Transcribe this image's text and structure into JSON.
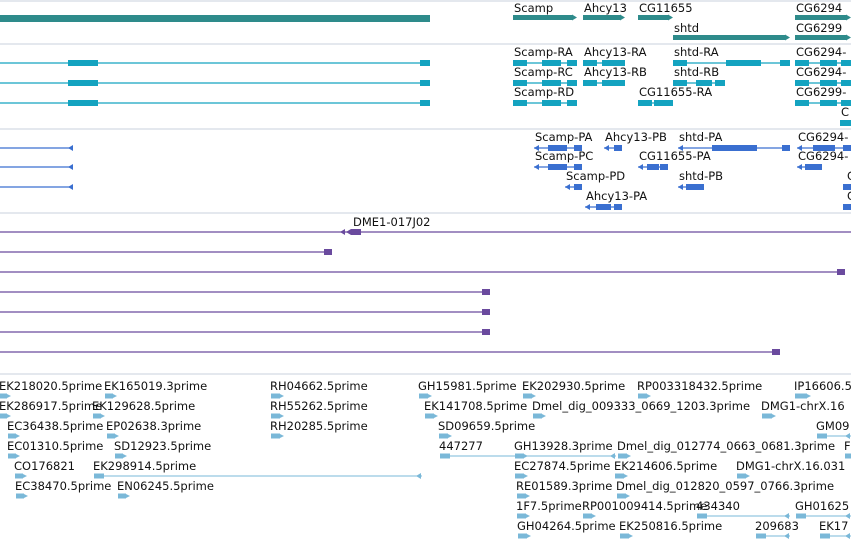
{
  "colors": {
    "gene": "#2e8b8b",
    "mrna": "#14a3c0",
    "protein": "#3a6fd0",
    "clone": "#6a4a9e",
    "est": "#7ab8d8",
    "separator": "#c8d2dc"
  },
  "tracks": [
    {
      "name": "genes",
      "features": [
        {
          "label": "Scamp",
          "row": 0,
          "start": 513,
          "end": 577
        },
        {
          "label": "Ahcy13",
          "row": 0,
          "start": 583,
          "end": 625
        },
        {
          "label": "CG11655",
          "row": 0,
          "start": 638,
          "end": 673
        },
        {
          "label": "shtd",
          "row": 1,
          "start": 673,
          "end": 790
        },
        {
          "label": "CG6294",
          "row": 0,
          "start": 795,
          "end": 851
        },
        {
          "label": "CG6299",
          "row": 1,
          "start": 795,
          "end": 851
        }
      ]
    },
    {
      "name": "mRNA",
      "features": [
        {
          "label": "Scamp-RA",
          "row": 0,
          "start": 513,
          "end": 577
        },
        {
          "label": "Ahcy13-RA",
          "row": 0,
          "start": 583,
          "end": 625
        },
        {
          "label": "shtd-RA",
          "row": 0,
          "start": 673,
          "end": 790
        },
        {
          "label": "CG6294-",
          "row": 0,
          "start": 795,
          "end": 851
        },
        {
          "label": "Scamp-RC",
          "row": 1,
          "start": 513,
          "end": 577
        },
        {
          "label": "Ahcy13-RB",
          "row": 1,
          "start": 583,
          "end": 625
        },
        {
          "label": "shtd-RB",
          "row": 1,
          "start": 673,
          "end": 725
        },
        {
          "label": "CG6294-",
          "row": 1,
          "start": 795,
          "end": 851
        },
        {
          "label": "Scamp-RD",
          "row": 2,
          "start": 513,
          "end": 577
        },
        {
          "label": "CG11655-RA",
          "row": 2,
          "start": 638,
          "end": 673
        },
        {
          "label": "CG6299-",
          "row": 2,
          "start": 795,
          "end": 851
        },
        {
          "label": "C",
          "row": 3,
          "start": 840,
          "end": 851
        }
      ]
    },
    {
      "name": "proteins",
      "features": [
        {
          "label": "Scamp-PA",
          "row": 0,
          "start": 534,
          "end": 582
        },
        {
          "label": "Ahcy13-PB",
          "row": 0,
          "start": 604,
          "end": 622
        },
        {
          "label": "shtd-PA",
          "row": 0,
          "start": 678,
          "end": 790
        },
        {
          "label": "CG6294-",
          "row": 0,
          "start": 797,
          "end": 851
        },
        {
          "label": "Scamp-PC",
          "row": 1,
          "start": 534,
          "end": 582
        },
        {
          "label": "CG11655-PA",
          "row": 1,
          "start": 638,
          "end": 668
        },
        {
          "label": "CG6294-",
          "row": 1,
          "start": 797,
          "end": 822
        },
        {
          "label": "Scamp-PD",
          "row": 2,
          "start": 565,
          "end": 582
        },
        {
          "label": "shtd-PB",
          "row": 2,
          "start": 678,
          "end": 704
        },
        {
          "label": "C",
          "row": 2,
          "start": 846,
          "end": 851
        },
        {
          "label": "Ahcy13-PA",
          "row": 3,
          "start": 585,
          "end": 622
        },
        {
          "label": "C",
          "row": 3,
          "start": 846,
          "end": 851
        }
      ]
    },
    {
      "name": "clones",
      "features": [
        {
          "label": "DME1-017J02",
          "row": 0,
          "start": 335,
          "end": 360
        }
      ]
    },
    {
      "name": "ests",
      "features": [
        {
          "label": "EK218020.5prime",
          "row": 0,
          "start": 0,
          "end": 10
        },
        {
          "label": "EK165019.3prime",
          "row": 0,
          "start": 105,
          "end": 116
        },
        {
          "label": "RH04662.5prime",
          "row": 0,
          "start": 271,
          "end": 283
        },
        {
          "label": "GH15981.5prime",
          "row": 0,
          "start": 419,
          "end": 431
        },
        {
          "label": "EK202930.5prime",
          "row": 0,
          "start": 523,
          "end": 535
        },
        {
          "label": "RP003318432.5prime",
          "row": 0,
          "start": 638,
          "end": 650
        },
        {
          "label": "IP16606.5",
          "row": 0,
          "start": 795,
          "end": 810
        },
        {
          "label": "EK286917.5prime",
          "row": 1,
          "start": 0,
          "end": 10
        },
        {
          "label": "EK129628.5prime",
          "row": 1,
          "start": 93,
          "end": 104
        },
        {
          "label": "RH55262.5prime",
          "row": 1,
          "start": 271,
          "end": 283
        },
        {
          "label": "EK141708.5prime",
          "row": 1,
          "start": 425,
          "end": 437
        },
        {
          "label": "Dmel_dig_009333_0669_1203.3prime",
          "row": 1,
          "start": 533,
          "end": 545
        },
        {
          "label": "DMG1-chrX.16",
          "row": 1,
          "start": 762,
          "end": 775
        },
        {
          "label": "EC36438.5prime",
          "row": 2,
          "start": 8,
          "end": 19
        },
        {
          "label": "EP02638.3prime",
          "row": 2,
          "start": 107,
          "end": 118
        },
        {
          "label": "RH20285.5prime",
          "row": 2,
          "start": 271,
          "end": 283
        },
        {
          "label": "SD09659.5prime",
          "row": 2,
          "start": 439,
          "end": 451
        },
        {
          "label": "GM09",
          "row": 2,
          "start": 817,
          "end": 851
        },
        {
          "label": "EC01310.5prime",
          "row": 3,
          "start": 8,
          "end": 19
        },
        {
          "label": "SD12923.5prime",
          "row": 3,
          "start": 115,
          "end": 126
        },
        {
          "label": "447277",
          "row": 3,
          "start": 440,
          "end": 616
        },
        {
          "label": "GH13928.3prime",
          "row": 3,
          "start": 515,
          "end": 527
        },
        {
          "label": "Dmel_dig_012774_0663_0681.3prime",
          "row": 3,
          "start": 618,
          "end": 630
        },
        {
          "label": "F",
          "row": 3,
          "start": 845,
          "end": 851
        },
        {
          "label": "CO176821",
          "row": 4,
          "start": 15,
          "end": 26
        },
        {
          "label": "EK298914.5prime",
          "row": 4,
          "start": 94,
          "end": 422
        },
        {
          "label": "EC27874.5prime",
          "row": 4,
          "start": 515,
          "end": 527
        },
        {
          "label": "EK214606.5prime",
          "row": 4,
          "start": 615,
          "end": 627
        },
        {
          "label": "DMG1-chrX.16.031",
          "row": 4,
          "start": 737,
          "end": 749
        },
        {
          "label": "EC38470.5prime",
          "row": 5,
          "start": 16,
          "end": 27
        },
        {
          "label": "EN06245.5prime",
          "row": 5,
          "start": 118,
          "end": 129
        },
        {
          "label": "RE01589.3prime",
          "row": 5,
          "start": 517,
          "end": 529
        },
        {
          "label": "Dmel_dig_012820_0597_0766.3prime",
          "row": 5,
          "start": 617,
          "end": 629
        },
        {
          "label": "1F7.5prime",
          "row": 6,
          "start": 517,
          "end": 529
        },
        {
          "label": "RP001009414.5prime",
          "row": 6,
          "start": 583,
          "end": 595
        },
        {
          "label": "434340",
          "row": 6,
          "start": 697,
          "end": 790
        },
        {
          "label": "GH01625",
          "row": 6,
          "start": 796,
          "end": 851
        },
        {
          "label": "GH04264.5prime",
          "row": 7,
          "start": 518,
          "end": 530
        },
        {
          "label": "EK250816.5prime",
          "row": 7,
          "start": 620,
          "end": 632
        },
        {
          "label": "209683",
          "row": 7,
          "start": 756,
          "end": 790
        },
        {
          "label": "EK17",
          "row": 7,
          "start": 820,
          "end": 851
        }
      ]
    }
  ]
}
